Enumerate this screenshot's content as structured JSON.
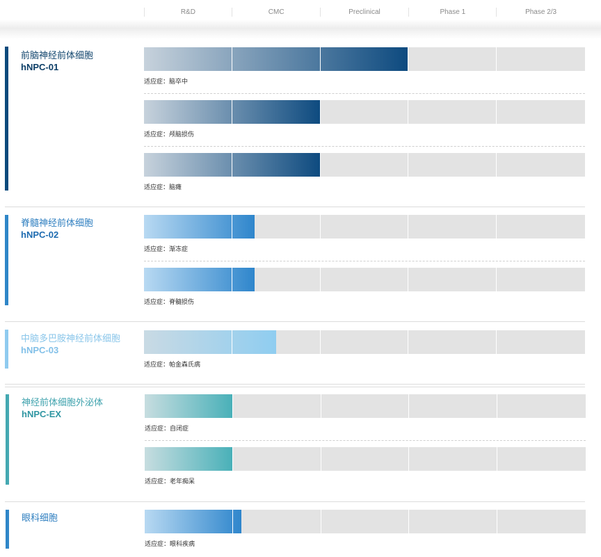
{
  "stages": [
    "R&D",
    "CMC",
    "Preclinical",
    "Phase 1",
    "Phase 2/3"
  ],
  "indication_prefix": "适应症：",
  "programs": [
    {
      "cn": "前脑神经前体细胞",
      "code": "hNPC-01",
      "color": "#0b4a7c",
      "name_color": "#12466e",
      "code_color": "#0b3d66",
      "gradient": [
        "#c7d2dc",
        "#0d4a7f"
      ],
      "rows": [
        {
          "indication": "脑卒中",
          "progress": 0.6
        },
        {
          "indication": "颅脑损伤",
          "progress": 0.4
        },
        {
          "indication": "脑瘫",
          "progress": 0.4
        }
      ]
    },
    {
      "cn": "脊髓神经前体细胞",
      "code": "hNPC-02",
      "color": "#2f86c8",
      "name_color": "#2f7fc0",
      "code_color": "#1d6bb0",
      "gradient": [
        "#b8d9f2",
        "#2f86cc"
      ],
      "rows": [
        {
          "indication": "渐冻症",
          "progress": 0.25
        },
        {
          "indication": "脊髓损伤",
          "progress": 0.25
        }
      ]
    },
    {
      "cn": "中脑多巴胺神经前体细胞",
      "code": "hNPC-03",
      "color": "#8fcbef",
      "name_color": "#8ac6ea",
      "code_color": "#82c0e8",
      "gradient": [
        "#c9dae4",
        "#8fcdf0"
      ],
      "rows": [
        {
          "indication": "帕金森氏病",
          "progress": 0.3
        }
      ]
    },
    {
      "cn": "神经前体细胞外泌体",
      "code": "hNPC-EX",
      "color": "#45a9b2",
      "name_color": "#3ea2ad",
      "code_color": "#2f96a2",
      "gradient": [
        "#c7dde0",
        "#48b0b8"
      ],
      "rows": [
        {
          "indication": "自闭症",
          "progress": 0.2
        },
        {
          "indication": "老年痴呆",
          "progress": 0.2
        }
      ]
    },
    {
      "cn": "眼科细胞",
      "code": "",
      "color": "#2f86c8",
      "name_color": "#2f7fc0",
      "code_color": "#1d6bb0",
      "gradient": [
        "#b8d9f2",
        "#2f86cc"
      ],
      "rows": [
        {
          "indication": "眼科疾病",
          "progress": 0.22
        }
      ]
    }
  ]
}
